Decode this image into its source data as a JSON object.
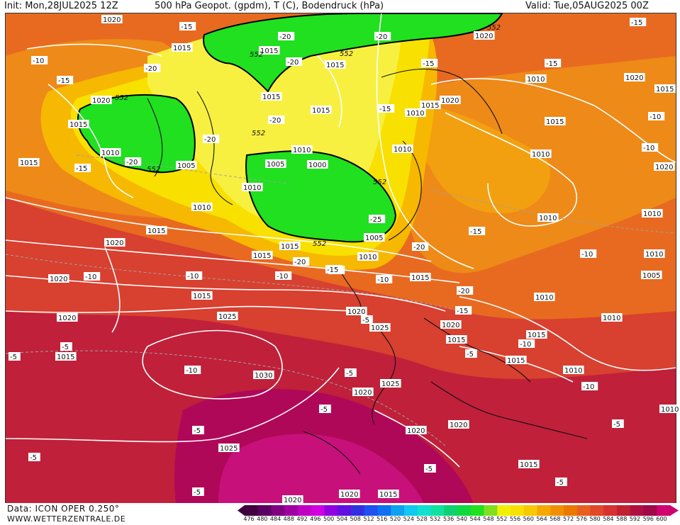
{
  "header": {
    "init": "Init: Mon,28JUL2025 12Z",
    "title": "500 hPa Geopot. (gpdm), T (C), Bodendruck (hPa)",
    "valid": "Valid: Tue,05AUG2025 00Z"
  },
  "footer": {
    "data_source": "Data: ICON OPER 0.250°",
    "website": "WWW.WETTERZENTRALE.DE"
  },
  "legend": {
    "values": [
      "476",
      "480",
      "484",
      "488",
      "492",
      "496",
      "500",
      "504",
      "508",
      "512",
      "516",
      "520",
      "524",
      "528",
      "532",
      "536",
      "540",
      "544",
      "548",
      "552",
      "556",
      "560",
      "564",
      "568",
      "572",
      "576",
      "580",
      "584",
      "588",
      "592",
      "596",
      "600"
    ],
    "colors": [
      "#400040",
      "#5a0060",
      "#800080",
      "#a000a0",
      "#c000c0",
      "#d000e0",
      "#9000e0",
      "#6010e0",
      "#3030e0",
      "#2050f0",
      "#1070f0",
      "#10a0f0",
      "#10c8f0",
      "#10e0d0",
      "#10e0a0",
      "#10d070",
      "#10d840",
      "#20e020",
      "#80e020",
      "#f0f000",
      "#f8e000",
      "#f8c800",
      "#f4a800",
      "#f09000",
      "#ec7800",
      "#e86020",
      "#e04828",
      "#d83030",
      "#c02030",
      "#b01040",
      "#a00848",
      "#d00070"
    ]
  },
  "map": {
    "pressure_labels": [
      {
        "text": "1020"
      },
      {
        "text": "1015"
      },
      {
        "text": "1015"
      },
      {
        "text": "1020"
      },
      {
        "text": "1015"
      },
      {
        "text": "1010"
      },
      {
        "text": "1005"
      },
      {
        "text": "1015"
      },
      {
        "text": "1015"
      },
      {
        "text": "1010"
      },
      {
        "text": "1005"
      },
      {
        "text": "1000"
      },
      {
        "text": "1010"
      },
      {
        "text": "1010"
      },
      {
        "text": "1015"
      },
      {
        "text": "1020"
      },
      {
        "text": "1015"
      },
      {
        "text": "1010"
      },
      {
        "text": "1005"
      },
      {
        "text": "1010"
      },
      {
        "text": "1015"
      },
      {
        "text": "1020"
      },
      {
        "text": "1015"
      },
      {
        "text": "1010"
      },
      {
        "text": "1010"
      },
      {
        "text": "1020"
      },
      {
        "text": "1015"
      },
      {
        "text": "1020"
      },
      {
        "text": "1010"
      },
      {
        "text": "1015"
      },
      {
        "text": "1020"
      },
      {
        "text": "1010"
      },
      {
        "text": "1010"
      },
      {
        "text": "1010"
      },
      {
        "text": "1005"
      },
      {
        "text": "1010"
      },
      {
        "text": "1010"
      },
      {
        "text": "1020"
      },
      {
        "text": "1015"
      },
      {
        "text": "1020"
      },
      {
        "text": "1015"
      },
      {
        "text": "1025"
      },
      {
        "text": "1020"
      },
      {
        "text": "1025"
      },
      {
        "text": "1020"
      },
      {
        "text": "1015"
      },
      {
        "text": "1015"
      },
      {
        "text": "1015"
      },
      {
        "text": "1010"
      },
      {
        "text": "1030"
      },
      {
        "text": "1025"
      },
      {
        "text": "1020"
      },
      {
        "text": "1020"
      },
      {
        "text": "1020"
      },
      {
        "text": "1025"
      },
      {
        "text": "1015"
      },
      {
        "text": "1020"
      },
      {
        "text": "1020"
      },
      {
        "text": "1015"
      },
      {
        "text": "1010"
      },
      {
        "text": "1015"
      },
      {
        "text": "1015"
      },
      {
        "text": "1015"
      }
    ],
    "temp_labels": [
      {
        "text": "-15"
      },
      {
        "text": "-20"
      },
      {
        "text": "-20"
      },
      {
        "text": "-10"
      },
      {
        "text": "-15"
      },
      {
        "text": "-20"
      },
      {
        "text": "-20"
      },
      {
        "text": "-15"
      },
      {
        "text": "-20"
      },
      {
        "text": "-20"
      },
      {
        "text": "-15"
      },
      {
        "text": "-15"
      },
      {
        "text": "-15"
      },
      {
        "text": "-15"
      },
      {
        "text": "-10"
      },
      {
        "text": "-10"
      },
      {
        "text": "-20"
      },
      {
        "text": "-25"
      },
      {
        "text": "-15"
      },
      {
        "text": "-20"
      },
      {
        "text": "-10"
      },
      {
        "text": "-10"
      },
      {
        "text": "-10"
      },
      {
        "text": "-15"
      },
      {
        "text": "-10"
      },
      {
        "text": "-10"
      },
      {
        "text": "-20"
      },
      {
        "text": "-15"
      },
      {
        "text": "-5"
      },
      {
        "text": "-10"
      },
      {
        "text": "-5"
      },
      {
        "text": "-5"
      },
      {
        "text": "-5"
      },
      {
        "text": "-10"
      },
      {
        "text": "-5"
      },
      {
        "text": "-5"
      },
      {
        "text": "-5"
      },
      {
        "text": "-5"
      },
      {
        "text": "-5"
      },
      {
        "text": "-5"
      },
      {
        "text": "-5"
      },
      {
        "text": "-20"
      },
      {
        "text": "-15"
      },
      {
        "text": "-10"
      },
      {
        "text": "-5"
      }
    ],
    "geopot_labels": [
      {
        "text": "552"
      },
      {
        "text": "552"
      },
      {
        "text": "552"
      },
      {
        "text": "552"
      },
      {
        "text": "552"
      },
      {
        "text": "552"
      },
      {
        "text": "552"
      },
      {
        "text": "552"
      }
    ]
  }
}
